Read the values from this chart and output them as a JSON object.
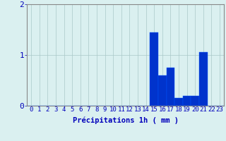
{
  "hours": [
    0,
    1,
    2,
    3,
    4,
    5,
    6,
    7,
    8,
    9,
    10,
    11,
    12,
    13,
    14,
    15,
    16,
    17,
    18,
    19,
    20,
    21,
    22,
    23
  ],
  "values": [
    0,
    0,
    0,
    0,
    0,
    0,
    0,
    0,
    0,
    0,
    0,
    0,
    0,
    0,
    0,
    1.45,
    0.6,
    0.75,
    0.15,
    0.2,
    0.2,
    1.05,
    0,
    0
  ],
  "bar_color": "#0033cc",
  "bar_edge_color": "#0055ff",
  "background_color": "#daf0f0",
  "grid_color": "#aac8c8",
  "text_color": "#0000bb",
  "xlabel": "Précipitations 1h ( mm )",
  "ylim": [
    0,
    2.0
  ],
  "yticks": [
    0,
    1,
    2
  ],
  "xlabel_fontsize": 7.5,
  "tick_fontsize": 6.5
}
